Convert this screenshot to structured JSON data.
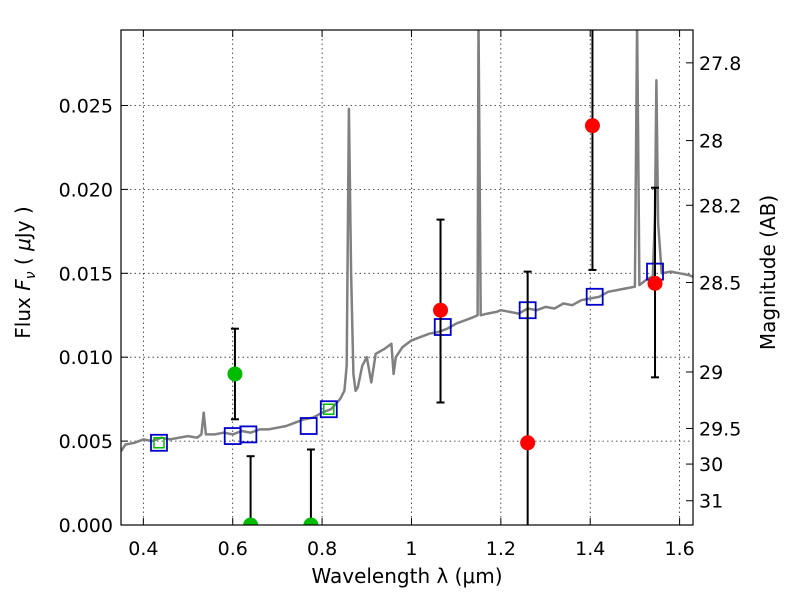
{
  "chart_data": {
    "type": "scatter",
    "title": "",
    "xlabel": "Wavelength  λ (μm)",
    "ylabel_left_parts": [
      "Flux  ",
      "F",
      "ν",
      "  ( ",
      "μ",
      "Jy )"
    ],
    "ylabel_right": "Magnitude (AB)",
    "xlim": [
      0.35,
      1.63
    ],
    "ylim": [
      0.0,
      0.0295
    ],
    "x_ticks": [
      0.4,
      0.6,
      0.8,
      1.0,
      1.2,
      1.4,
      1.6
    ],
    "x_tick_labels": [
      "0.4",
      "0.6",
      "0.8",
      "1",
      "1.2",
      "1.4",
      "1.6"
    ],
    "y_ticks": [
      0.0,
      0.005,
      0.01,
      0.015,
      0.02,
      0.025
    ],
    "y_tick_labels": [
      "0.000",
      "0.005",
      "0.010",
      "0.015",
      "0.020",
      "0.025"
    ],
    "right_axis_ticks": [
      {
        "label": "27.8",
        "value": 27.8
      },
      {
        "label": "28",
        "value": 28.0
      },
      {
        "label": "28.2",
        "value": 28.2
      },
      {
        "label": "28.5",
        "value": 28.5
      },
      {
        "label": "29",
        "value": 29.0
      },
      {
        "label": "29.5",
        "value": 29.5
      },
      {
        "label": "30",
        "value": 30.0
      },
      {
        "label": "31",
        "value": 31.0
      }
    ],
    "grid": true,
    "colors": {
      "spectrum": "#808080",
      "model_box": "#0000cc",
      "detection": "#ff0000",
      "upper_limit": "#00bb00",
      "errorbar": "#000000"
    },
    "series": [
      {
        "kind": "line",
        "points": [
          [
            0.35,
            0.0044
          ],
          [
            0.36,
            0.0048
          ],
          [
            0.38,
            0.0049
          ],
          [
            0.4,
            0.0051
          ],
          [
            0.42,
            0.005
          ],
          [
            0.44,
            0.0052
          ],
          [
            0.46,
            0.0051
          ],
          [
            0.48,
            0.0052
          ],
          [
            0.5,
            0.0053
          ],
          [
            0.52,
            0.0052
          ],
          [
            0.53,
            0.0054
          ],
          [
            0.535,
            0.0067
          ],
          [
            0.54,
            0.0054
          ],
          [
            0.56,
            0.0054
          ],
          [
            0.58,
            0.0055
          ],
          [
            0.6,
            0.0054
          ],
          [
            0.62,
            0.0056
          ],
          [
            0.64,
            0.0055
          ],
          [
            0.66,
            0.0057
          ],
          [
            0.68,
            0.0057
          ],
          [
            0.7,
            0.0058
          ],
          [
            0.72,
            0.0059
          ],
          [
            0.74,
            0.0061
          ],
          [
            0.76,
            0.0063
          ],
          [
            0.78,
            0.0064
          ],
          [
            0.8,
            0.0067
          ],
          [
            0.82,
            0.0069
          ],
          [
            0.84,
            0.0075
          ],
          [
            0.85,
            0.008
          ],
          [
            0.855,
            0.0095
          ],
          [
            0.86,
            0.0248
          ],
          [
            0.865,
            0.015
          ],
          [
            0.87,
            0.009
          ],
          [
            0.875,
            0.008
          ],
          [
            0.88,
            0.0082
          ],
          [
            0.89,
            0.0095
          ],
          [
            0.9,
            0.01
          ],
          [
            0.91,
            0.0085
          ],
          [
            0.92,
            0.0102
          ],
          [
            0.94,
            0.0105
          ],
          [
            0.955,
            0.0108
          ],
          [
            0.96,
            0.009
          ],
          [
            0.965,
            0.01
          ],
          [
            0.98,
            0.0106
          ],
          [
            1.0,
            0.011
          ],
          [
            1.02,
            0.0112
          ],
          [
            1.04,
            0.0114
          ],
          [
            1.06,
            0.0115
          ],
          [
            1.08,
            0.0117
          ],
          [
            1.1,
            0.012
          ],
          [
            1.12,
            0.0122
          ],
          [
            1.14,
            0.0124
          ],
          [
            1.148,
            0.0125
          ],
          [
            1.15,
            0.03
          ],
          [
            1.155,
            0.0125
          ],
          [
            1.17,
            0.0126
          ],
          [
            1.19,
            0.0127
          ],
          [
            1.2,
            0.0128
          ],
          [
            1.22,
            0.0127
          ],
          [
            1.24,
            0.0126
          ],
          [
            1.26,
            0.0129
          ],
          [
            1.28,
            0.0128
          ],
          [
            1.3,
            0.013
          ],
          [
            1.32,
            0.0129
          ],
          [
            1.34,
            0.0132
          ],
          [
            1.36,
            0.0131
          ],
          [
            1.38,
            0.0134
          ],
          [
            1.4,
            0.0135
          ],
          [
            1.42,
            0.0136
          ],
          [
            1.44,
            0.0139
          ],
          [
            1.46,
            0.014
          ],
          [
            1.48,
            0.0141
          ],
          [
            1.5,
            0.0142
          ],
          [
            1.505,
            0.03
          ],
          [
            1.51,
            0.0143
          ],
          [
            1.52,
            0.0145
          ],
          [
            1.53,
            0.0147
          ],
          [
            1.54,
            0.0148
          ],
          [
            1.545,
            0.0185
          ],
          [
            1.548,
            0.0265
          ],
          [
            1.552,
            0.018
          ],
          [
            1.56,
            0.015
          ],
          [
            1.58,
            0.0151
          ],
          [
            1.6,
            0.015
          ],
          [
            1.62,
            0.0149
          ],
          [
            1.63,
            0.0148
          ]
        ]
      },
      {
        "kind": "model_boxes",
        "points": [
          [
            0.435,
            0.0049
          ],
          [
            0.6,
            0.0053
          ],
          [
            0.635,
            0.0054
          ],
          [
            0.77,
            0.0059
          ],
          [
            0.815,
            0.0069
          ],
          [
            1.07,
            0.0118
          ],
          [
            1.26,
            0.0128
          ],
          [
            1.41,
            0.0136
          ],
          [
            1.545,
            0.0151
          ]
        ]
      },
      {
        "kind": "upper_limit_markers",
        "points": [
          [
            0.435,
            0.0049
          ],
          [
            0.815,
            0.0069
          ]
        ]
      },
      {
        "kind": "detections_red",
        "points": [
          [
            1.065,
            0.0128,
            0.0073,
            0.0182
          ],
          [
            1.26,
            0.0049,
            0.0,
            0.0151
          ],
          [
            1.405,
            0.0238,
            0.0152,
            0.03
          ],
          [
            1.545,
            0.0144,
            0.0088,
            0.0201
          ]
        ]
      },
      {
        "kind": "detections_green",
        "points": [
          [
            0.605,
            0.009,
            0.0063,
            0.0117
          ],
          [
            0.64,
            0.0,
            0.0,
            0.0041
          ],
          [
            0.775,
            0.0,
            0.0,
            0.0045
          ]
        ]
      }
    ]
  }
}
